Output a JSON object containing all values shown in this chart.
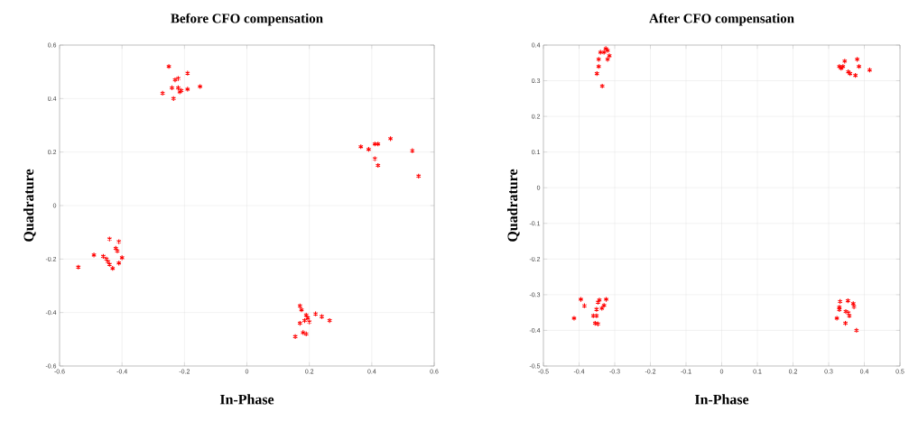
{
  "chart_data": [
    {
      "type": "scatter",
      "title": "Before CFO compensation",
      "xlabel": "In-Phase",
      "ylabel": "Quadrature",
      "xlim": [
        -0.6,
        0.6
      ],
      "ylim": [
        -0.6,
        0.6
      ],
      "xticks": [
        -0.6,
        -0.4,
        -0.2,
        0,
        0.2,
        0.4,
        0.6
      ],
      "yticks": [
        -0.6,
        -0.4,
        -0.2,
        0,
        0.2,
        0.4,
        0.6
      ],
      "grid": true,
      "marker": "cross",
      "series": [
        {
          "color": "#ff0000",
          "x": [
            -0.25,
            -0.23,
            -0.22,
            -0.19,
            -0.24,
            -0.21,
            -0.22,
            -0.27,
            -0.19,
            -0.15,
            -0.235,
            -0.215,
            0.365,
            0.39,
            0.41,
            0.42,
            0.46,
            0.53,
            0.41,
            0.42,
            0.55,
            -0.54,
            -0.49,
            -0.44,
            -0.41,
            -0.42,
            -0.415,
            -0.4,
            -0.46,
            -0.45,
            -0.445,
            -0.44,
            -0.43,
            -0.41,
            0.17,
            0.175,
            0.19,
            0.22,
            0.24,
            0.265,
            0.17,
            0.185,
            0.2,
            0.195,
            0.18,
            0.19,
            0.155
          ],
          "values": [
            0.52,
            0.47,
            0.475,
            0.495,
            0.44,
            0.43,
            0.44,
            0.42,
            0.435,
            0.445,
            0.4,
            0.425,
            0.22,
            0.21,
            0.23,
            0.23,
            0.25,
            0.205,
            0.175,
            0.15,
            0.11,
            -0.23,
            -0.185,
            -0.125,
            -0.135,
            -0.16,
            -0.17,
            -0.195,
            -0.19,
            -0.2,
            -0.21,
            -0.22,
            -0.235,
            -0.215,
            -0.375,
            -0.39,
            -0.41,
            -0.405,
            -0.415,
            -0.43,
            -0.44,
            -0.43,
            -0.435,
            -0.42,
            -0.475,
            -0.48,
            -0.49
          ]
        }
      ]
    },
    {
      "type": "scatter",
      "title": "After CFO compensation",
      "xlabel": "In-Phase",
      "ylabel": "Quadrature",
      "xlim": [
        -0.5,
        0.5
      ],
      "ylim": [
        -0.5,
        0.4
      ],
      "xticks": [
        -0.5,
        -0.4,
        -0.3,
        -0.2,
        -0.1,
        0,
        0.1,
        0.2,
        0.3,
        0.4,
        0.5
      ],
      "yticks": [
        -0.5,
        -0.4,
        -0.3,
        -0.2,
        -0.1,
        0,
        0.1,
        0.2,
        0.3,
        0.4
      ],
      "grid": true,
      "marker": "cross",
      "series": [
        {
          "color": "#ff0000",
          "x": [
            -0.35,
            -0.345,
            -0.345,
            -0.34,
            -0.325,
            -0.32,
            -0.33,
            -0.315,
            -0.32,
            -0.335,
            0.33,
            0.335,
            0.345,
            0.36,
            0.355,
            0.38,
            0.385,
            0.375,
            0.415,
            0.34,
            -0.414,
            -0.395,
            -0.385,
            -0.36,
            -0.355,
            -0.347,
            -0.351,
            -0.351,
            -0.347,
            -0.343,
            -0.336,
            -0.33,
            -0.324,
            0.323,
            0.33,
            0.332,
            0.33,
            0.347,
            0.348,
            0.354,
            0.355,
            0.358,
            0.369,
            0.371,
            0.378
          ],
          "values": [
            0.32,
            0.34,
            0.36,
            0.38,
            0.39,
            0.385,
            0.38,
            0.37,
            0.36,
            0.285,
            0.34,
            0.335,
            0.355,
            0.32,
            0.325,
            0.36,
            0.34,
            0.315,
            0.33,
            0.34,
            -0.366,
            -0.313,
            -0.331,
            -0.359,
            -0.38,
            -0.382,
            -0.359,
            -0.341,
            -0.321,
            -0.315,
            -0.338,
            -0.33,
            -0.313,
            -0.366,
            -0.342,
            -0.319,
            -0.335,
            -0.38,
            -0.347,
            -0.317,
            -0.351,
            -0.359,
            -0.325,
            -0.334,
            -0.4
          ]
        }
      ]
    }
  ]
}
